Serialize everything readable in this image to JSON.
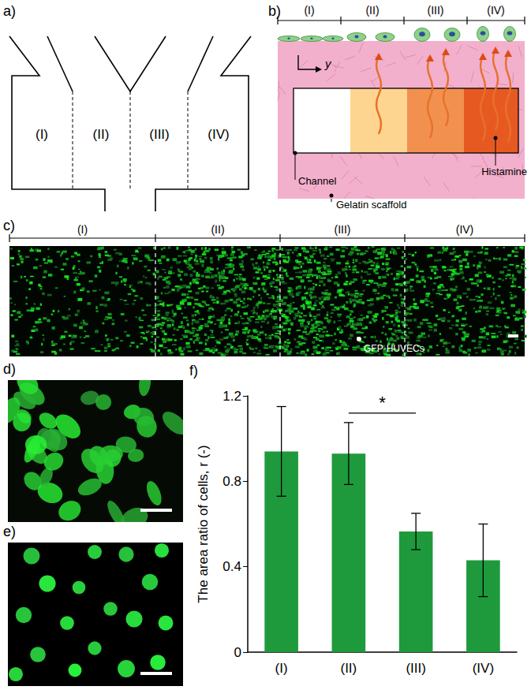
{
  "panels": {
    "a": {
      "label": "a)",
      "regions": [
        "(I)",
        "(II)",
        "(III)",
        "(IV)"
      ]
    },
    "b": {
      "label": "b)",
      "regions": [
        "(I)",
        "(II)",
        "(III)",
        "(IV)"
      ],
      "axis_label": "y",
      "channel": "Channel",
      "scaffold": "Gelatin scaffold",
      "histamine": "Histamine"
    },
    "c": {
      "label": "c)",
      "regions": [
        "(I)",
        "(II)",
        "(III)",
        "(IV)"
      ],
      "annotation": "GFP-HUVECs"
    },
    "d": {
      "label": "d)"
    },
    "e": {
      "label": "e)"
    },
    "f": {
      "label": "f)"
    }
  },
  "chart_data": {
    "type": "bar",
    "categories": [
      "(I)",
      "(II)",
      "(III)",
      "(IV)"
    ],
    "values": [
      0.94,
      0.93,
      0.565,
      0.43
    ],
    "errors": [
      0.21,
      0.145,
      0.085,
      0.17
    ],
    "color": "#1e9a3c",
    "y_label": "The area ratio of cells, r (-)",
    "ylim": [
      0,
      1.2
    ],
    "yticks": [
      0,
      0.4,
      0.8,
      1.2
    ],
    "grid": false,
    "annotations": [
      {
        "text": "*",
        "between": [
          "(II)",
          "(III)"
        ]
      }
    ]
  }
}
